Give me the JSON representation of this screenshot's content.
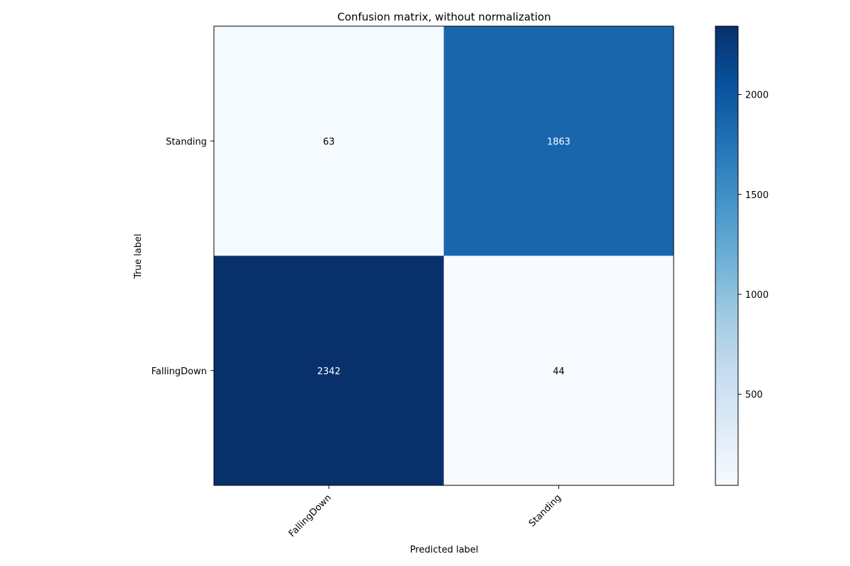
{
  "chart_data": {
    "type": "heatmap",
    "title": "Confusion matrix, without normalization",
    "xlabel": "Predicted label",
    "ylabel": "True label",
    "x_categories": [
      "FallingDown",
      "Standing"
    ],
    "y_categories": [
      "Standing",
      "FallingDown"
    ],
    "values": [
      [
        63,
        1863
      ],
      [
        2342,
        44
      ]
    ],
    "colormap": "Blues",
    "colorbar": {
      "range": [
        44,
        2342
      ],
      "ticks": [
        500,
        1000,
        1500,
        2000
      ]
    },
    "grid": false
  }
}
